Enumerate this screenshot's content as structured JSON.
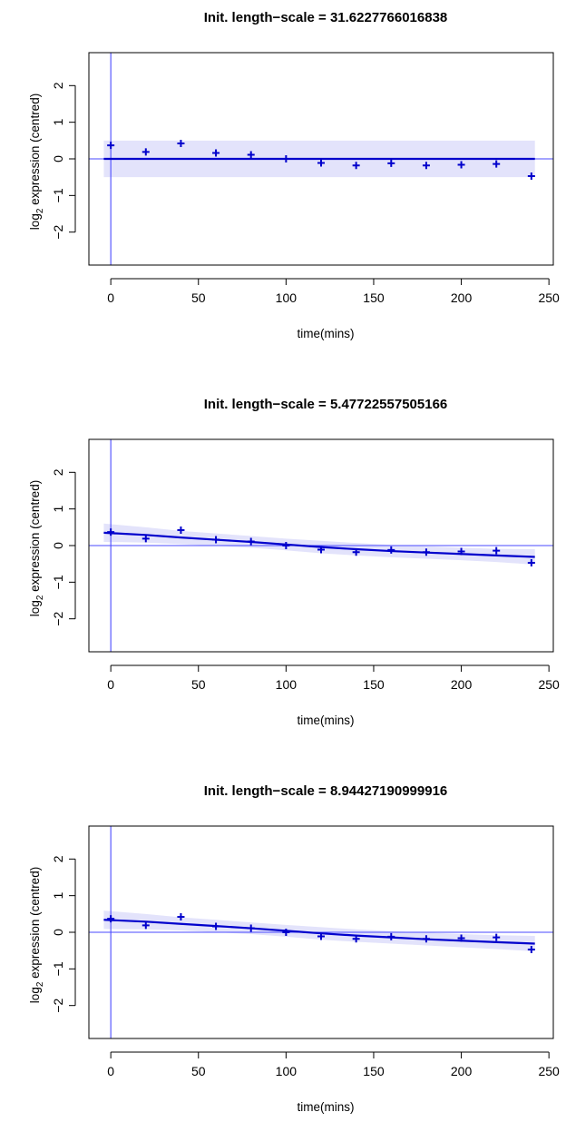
{
  "chart_data": [
    {
      "type": "line",
      "title": "Init. length−scale = 31.6227766016838",
      "xlabel": "time(mins)",
      "ylabel_base": "log",
      "ylabel_sub": "2",
      "ylabel_rest": " expression (centred)",
      "x_ticks": [
        0,
        50,
        100,
        150,
        200,
        250
      ],
      "y_ticks": [
        -2,
        -1,
        0,
        1,
        2
      ],
      "xlim": [
        -12.5,
        252.5
      ],
      "ylim": [
        -2.9,
        2.9
      ],
      "grid": false,
      "points": {
        "x": [
          0,
          20,
          40,
          60,
          80,
          100,
          120,
          140,
          160,
          180,
          200,
          220,
          240
        ],
        "y": [
          0.37,
          0.19,
          0.42,
          0.16,
          0.11,
          0.0,
          -0.11,
          -0.18,
          -0.12,
          -0.18,
          -0.16,
          -0.14,
          -0.47
        ]
      },
      "fit": {
        "x": [
          -4,
          242
        ],
        "y": [
          0.0,
          0.0
        ]
      },
      "band": {
        "x": [
          -4,
          242
        ],
        "upper": [
          0.5,
          0.5
        ],
        "lower": [
          -0.5,
          -0.5
        ]
      },
      "ref_lines": {
        "v": 0,
        "h": 0
      },
      "colors": {
        "series": "#0000cc",
        "band": "#e3e3fb",
        "ref": "#4a4aff"
      }
    },
    {
      "type": "line",
      "title": "Init. length−scale = 5.47722557505166",
      "xlabel": "time(mins)",
      "ylabel_base": "log",
      "ylabel_sub": "2",
      "ylabel_rest": " expression (centred)",
      "x_ticks": [
        0,
        50,
        100,
        150,
        200,
        250
      ],
      "y_ticks": [
        -2,
        -1,
        0,
        1,
        2
      ],
      "xlim": [
        -12.5,
        252.5
      ],
      "ylim": [
        -2.9,
        2.9
      ],
      "grid": false,
      "points": {
        "x": [
          0,
          20,
          40,
          60,
          80,
          100,
          120,
          140,
          160,
          180,
          200,
          220,
          240
        ],
        "y": [
          0.37,
          0.19,
          0.42,
          0.16,
          0.11,
          0.0,
          -0.11,
          -0.18,
          -0.12,
          -0.18,
          -0.16,
          -0.14,
          -0.47
        ]
      },
      "fit": {
        "x": [
          -4,
          20,
          40,
          60,
          80,
          100,
          120,
          140,
          160,
          180,
          200,
          220,
          242
        ],
        "y": [
          0.35,
          0.29,
          0.22,
          0.16,
          0.1,
          0.03,
          -0.04,
          -0.1,
          -0.15,
          -0.19,
          -0.23,
          -0.27,
          -0.31
        ]
      },
      "band": {
        "x": [
          -4,
          20,
          40,
          60,
          80,
          100,
          120,
          140,
          160,
          180,
          200,
          220,
          242
        ],
        "upper": [
          0.6,
          0.5,
          0.4,
          0.33,
          0.26,
          0.19,
          0.13,
          0.07,
          0.02,
          -0.02,
          -0.06,
          -0.09,
          -0.1
        ],
        "lower": [
          0.1,
          0.08,
          0.04,
          -0.01,
          -0.06,
          -0.13,
          -0.21,
          -0.27,
          -0.32,
          -0.36,
          -0.4,
          -0.45,
          -0.52
        ]
      },
      "ref_lines": {
        "v": 0,
        "h": 0
      },
      "colors": {
        "series": "#0000cc",
        "band": "#e3e3fb",
        "ref": "#4a4aff"
      }
    },
    {
      "type": "line",
      "title": "Init. length−scale = 8.94427190999916",
      "xlabel": "time(mins)",
      "ylabel_base": "log",
      "ylabel_sub": "2",
      "ylabel_rest": " expression (centred)",
      "x_ticks": [
        0,
        50,
        100,
        150,
        200,
        250
      ],
      "y_ticks": [
        -2,
        -1,
        0,
        1,
        2
      ],
      "xlim": [
        -12.5,
        252.5
      ],
      "ylim": [
        -2.9,
        2.9
      ],
      "grid": false,
      "points": {
        "x": [
          0,
          20,
          40,
          60,
          80,
          100,
          120,
          140,
          160,
          180,
          200,
          220,
          240
        ],
        "y": [
          0.37,
          0.19,
          0.42,
          0.16,
          0.11,
          0.0,
          -0.11,
          -0.18,
          -0.12,
          -0.18,
          -0.16,
          -0.14,
          -0.47
        ]
      },
      "fit": {
        "x": [
          -4,
          20,
          40,
          60,
          80,
          100,
          120,
          140,
          160,
          180,
          200,
          220,
          242
        ],
        "y": [
          0.34,
          0.29,
          0.23,
          0.17,
          0.11,
          0.04,
          -0.03,
          -0.09,
          -0.14,
          -0.19,
          -0.23,
          -0.27,
          -0.31
        ]
      },
      "band": {
        "x": [
          -4,
          20,
          40,
          60,
          80,
          100,
          120,
          140,
          160,
          180,
          200,
          220,
          242
        ],
        "upper": [
          0.59,
          0.5,
          0.41,
          0.34,
          0.27,
          0.2,
          0.14,
          0.08,
          0.03,
          -0.01,
          -0.05,
          -0.08,
          -0.1
        ],
        "lower": [
          0.09,
          0.08,
          0.05,
          0.0,
          -0.05,
          -0.12,
          -0.2,
          -0.26,
          -0.31,
          -0.36,
          -0.41,
          -0.46,
          -0.52
        ]
      },
      "ref_lines": {
        "v": 0,
        "h": 0
      },
      "colors": {
        "series": "#0000cc",
        "band": "#e3e3fb",
        "ref": "#4a4aff"
      }
    }
  ]
}
